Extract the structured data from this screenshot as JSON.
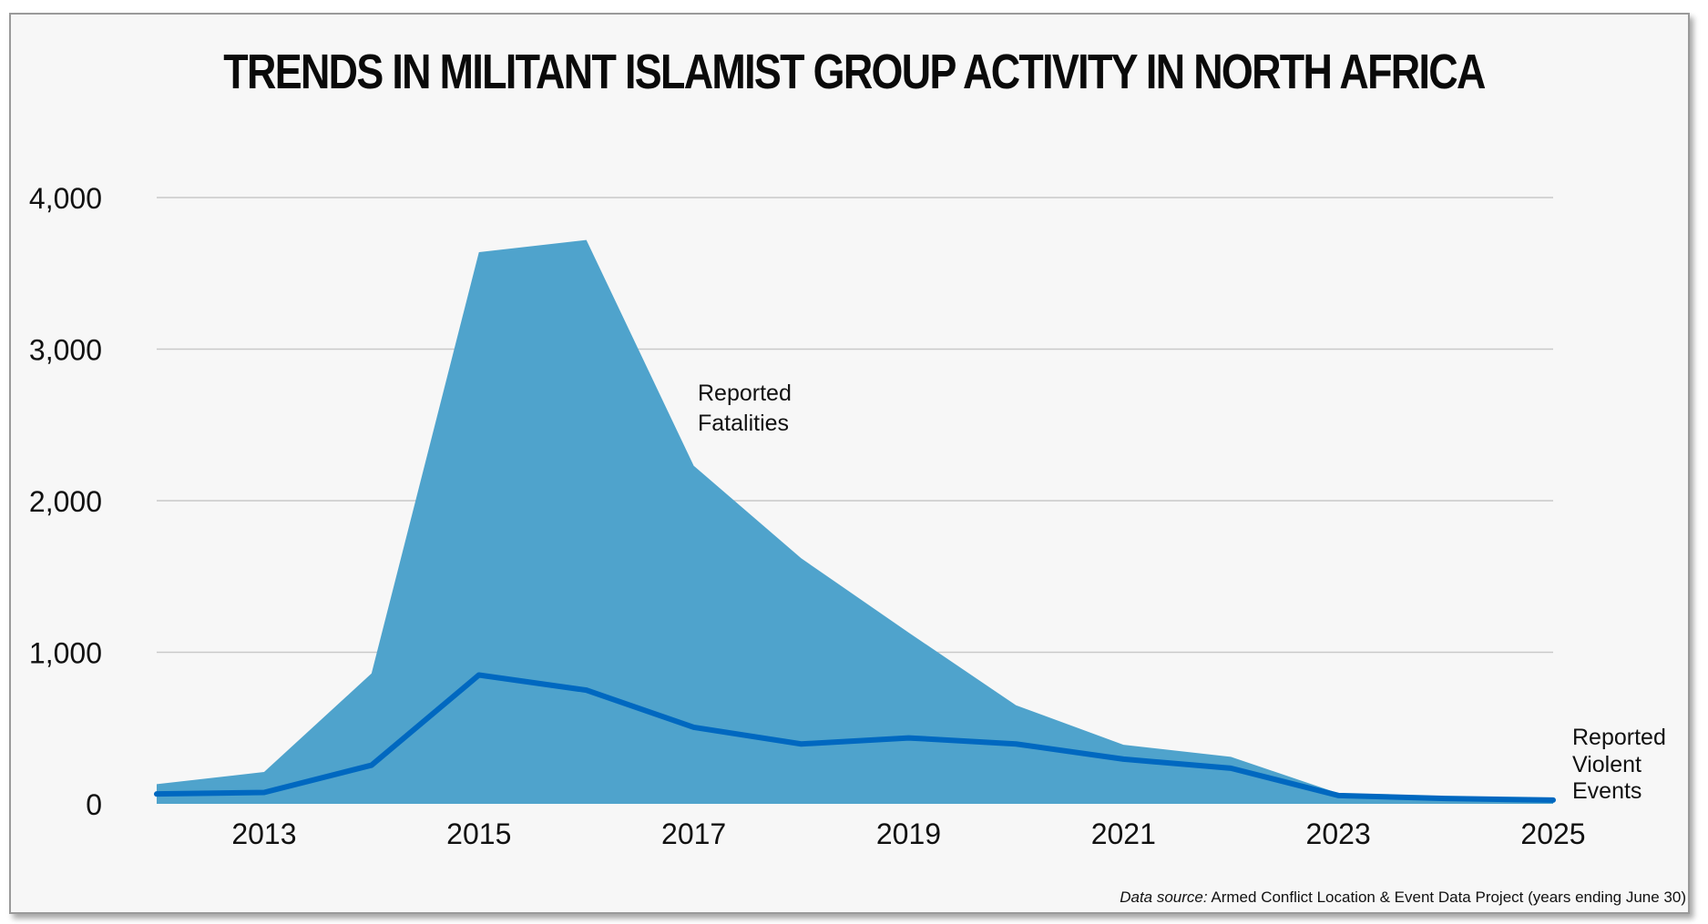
{
  "chart_data": {
    "type": "area",
    "title": "TRENDS IN MILITANT ISLAMIST GROUP ACTIVITY IN NORTH AFRICA",
    "x": [
      2012,
      2013,
      2014,
      2015,
      2016,
      2017,
      2018,
      2019,
      2020,
      2021,
      2022,
      2023,
      2024,
      2025
    ],
    "x_ticks": [
      "2013",
      "2015",
      "2017",
      "2019",
      "2021",
      "2023",
      "2025"
    ],
    "y_ticks": [
      "0",
      "1,000",
      "2,000",
      "3,000",
      "4,000"
    ],
    "ylim": [
      0,
      4000
    ],
    "xlim": [
      2012,
      2025
    ],
    "grid": true,
    "series": [
      {
        "name": "Reported Fatalities",
        "kind": "area",
        "color": "#4fa3cc",
        "values": [
          130,
          210,
          860,
          3640,
          3720,
          2230,
          1620,
          1130,
          650,
          390,
          310,
          70,
          40,
          25
        ]
      },
      {
        "name": "Reported Violent Events",
        "kind": "line",
        "color": "#0068c0",
        "values": [
          65,
          75,
          255,
          850,
          750,
          505,
          395,
          435,
          395,
          295,
          235,
          55,
          35,
          25
        ]
      }
    ],
    "annotations": {
      "fatalities_line1": "Reported",
      "fatalities_line2": "Fatalities",
      "events_line1": "Reported",
      "events_line2": "Violent",
      "events_line3": "Events"
    }
  },
  "source": {
    "label": "Data source:",
    "text": " Armed Conflict Location & Event Data Project (years ending June 30)"
  }
}
